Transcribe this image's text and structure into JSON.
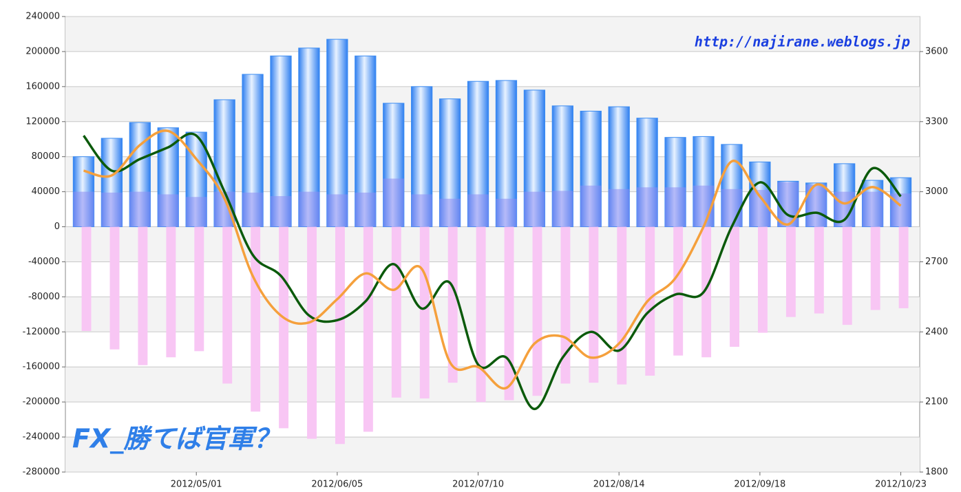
{
  "chart_data": {
    "type": "combo",
    "annotations": [
      "http://najirane.weblogs.jp",
      "FX_勝てば官軍？"
    ],
    "categories": [
      null,
      null,
      null,
      null,
      "2012/05/01",
      null,
      null,
      null,
      null,
      "2012/06/05",
      null,
      null,
      null,
      null,
      "2012/07/10",
      null,
      null,
      null,
      null,
      "2012/08/14",
      null,
      null,
      null,
      null,
      "2012/09/18",
      null,
      null,
      null,
      null,
      "2012/10/23"
    ],
    "ylim": [
      -280000,
      240000
    ],
    "yticks": [
      -280000,
      -240000,
      -200000,
      -160000,
      -120000,
      -80000,
      -40000,
      0,
      40000,
      80000,
      120000,
      160000,
      200000,
      240000
    ],
    "y2lim": [
      1800,
      3750
    ],
    "y2ticks": [
      1800,
      2100,
      2400,
      2700,
      3000,
      3300,
      3600
    ],
    "grid": true,
    "series": [
      {
        "type": "bar",
        "color": "#3b8cf2",
        "values": [
          80000,
          101000,
          119000,
          113000,
          108000,
          145000,
          174000,
          195000,
          204000,
          214000,
          195000,
          141000,
          160000,
          146000,
          166000,
          167000,
          156000,
          138000,
          132000,
          137000,
          124000,
          102000,
          103000,
          94000,
          74000,
          52000,
          50000,
          72000,
          53000,
          56000
        ]
      },
      {
        "type": "bar",
        "color": "#8c8cf2",
        "values": [
          40000,
          39000,
          40000,
          37000,
          34000,
          40000,
          39000,
          35000,
          40000,
          37000,
          39000,
          55000,
          37000,
          32000,
          37000,
          32000,
          40000,
          41000,
          47000,
          43000,
          45000,
          45000,
          47000,
          43000,
          42000,
          51000,
          48000,
          40000,
          40000,
          38000
        ]
      },
      {
        "type": "bar",
        "color": "#f8c6f4",
        "values": [
          -119000,
          -140000,
          -158000,
          -149000,
          -142000,
          -179000,
          -211000,
          -230000,
          -242000,
          -248000,
          -234000,
          -195000,
          -196000,
          -178000,
          -200000,
          -198000,
          -193000,
          -179000,
          -178000,
          -180000,
          -170000,
          -147000,
          -149000,
          -137000,
          -121000,
          -103000,
          -99000,
          -112000,
          -95000,
          -93000
        ]
      },
      {
        "type": "line",
        "axis": "y2",
        "color": "#0b5a0b",
        "values": [
          3240,
          3090,
          3140,
          3190,
          3240,
          3000,
          2730,
          2640,
          2470,
          2450,
          2530,
          2690,
          2500,
          2610,
          2260,
          2290,
          2070,
          2290,
          2400,
          2320,
          2480,
          2560,
          2570,
          2850,
          3040,
          2900,
          2910,
          2880,
          3100,
          2980
        ]
      },
      {
        "type": "line",
        "axis": "y2",
        "color": "#f5a03c",
        "values": [
          3090,
          3070,
          3200,
          3260,
          3140,
          2970,
          2640,
          2470,
          2440,
          2540,
          2650,
          2580,
          2670,
          2270,
          2250,
          2160,
          2350,
          2380,
          2290,
          2350,
          2530,
          2630,
          2850,
          3130,
          2980,
          2860,
          3030,
          2950,
          3020,
          2940
        ]
      }
    ]
  }
}
